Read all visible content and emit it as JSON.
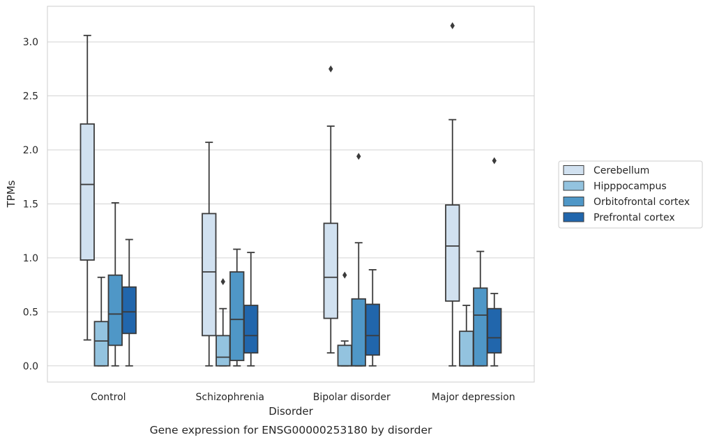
{
  "chart_data": {
    "type": "boxplot",
    "caption": "Gene expression for ENSG00000253180 by disorder",
    "xlabel": "Disorder",
    "ylabel": "TPMs",
    "ylim": [
      -0.15,
      3.33
    ],
    "yticks": [
      "0.0",
      "0.5",
      "1.0",
      "1.5",
      "2.0",
      "2.5",
      "3.0"
    ],
    "grid": "horizontal",
    "legend_position": "right",
    "categories": [
      "Control",
      "Schizophrenia",
      "Bipolar disorder",
      "Major depression"
    ],
    "series": [
      {
        "name": "Cerebellum",
        "color": "#d1e1f0",
        "boxes": [
          {
            "whislo": 0.24,
            "q1": 0.98,
            "med": 1.68,
            "q3": 2.24,
            "whishi": 3.06,
            "fliers": []
          },
          {
            "whislo": 0.0,
            "q1": 0.28,
            "med": 0.87,
            "q3": 1.41,
            "whishi": 2.07,
            "fliers": []
          },
          {
            "whislo": 0.12,
            "q1": 0.44,
            "med": 0.82,
            "q3": 1.32,
            "whishi": 2.22,
            "fliers": [
              2.75
            ]
          },
          {
            "whislo": 0.0,
            "q1": 0.6,
            "med": 1.11,
            "q3": 1.49,
            "whishi": 2.28,
            "fliers": [
              3.15
            ]
          }
        ]
      },
      {
        "name": "Hipppocampus",
        "color": "#93c3df",
        "boxes": [
          {
            "whislo": 0.0,
            "q1": 0.0,
            "med": 0.23,
            "q3": 0.41,
            "whishi": 0.82,
            "fliers": []
          },
          {
            "whislo": 0.0,
            "q1": 0.0,
            "med": 0.08,
            "q3": 0.28,
            "whishi": 0.53,
            "fliers": [
              0.78
            ]
          },
          {
            "whislo": 0.0,
            "q1": 0.0,
            "med": 0.0,
            "q3": 0.19,
            "whishi": 0.23,
            "fliers": [
              0.84
            ]
          },
          {
            "whislo": 0.0,
            "q1": 0.0,
            "med": 0.0,
            "q3": 0.32,
            "whishi": 0.56,
            "fliers": []
          }
        ]
      },
      {
        "name": "Orbitofrontal cortex",
        "color": "#4f97c7",
        "boxes": [
          {
            "whislo": 0.0,
            "q1": 0.19,
            "med": 0.48,
            "q3": 0.84,
            "whishi": 1.51,
            "fliers": []
          },
          {
            "whislo": 0.0,
            "q1": 0.05,
            "med": 0.43,
            "q3": 0.87,
            "whishi": 1.08,
            "fliers": []
          },
          {
            "whislo": 0.0,
            "q1": 0.0,
            "med": 0.0,
            "q3": 0.62,
            "whishi": 1.14,
            "fliers": [
              1.94
            ]
          },
          {
            "whislo": 0.0,
            "q1": 0.0,
            "med": 0.47,
            "q3": 0.72,
            "whishi": 1.06,
            "fliers": []
          }
        ]
      },
      {
        "name": "Prefrontal cortex",
        "color": "#2166ac",
        "boxes": [
          {
            "whislo": 0.0,
            "q1": 0.3,
            "med": 0.5,
            "q3": 0.73,
            "whishi": 1.17,
            "fliers": []
          },
          {
            "whislo": 0.0,
            "q1": 0.12,
            "med": 0.28,
            "q3": 0.56,
            "whishi": 1.05,
            "fliers": []
          },
          {
            "whislo": 0.0,
            "q1": 0.1,
            "med": 0.28,
            "q3": 0.57,
            "whishi": 0.89,
            "fliers": []
          },
          {
            "whislo": 0.0,
            "q1": 0.12,
            "med": 0.26,
            "q3": 0.53,
            "whishi": 0.67,
            "fliers": [
              1.9
            ]
          }
        ]
      }
    ]
  },
  "colors": {
    "line": "#3b3b3b",
    "grid": "#d3d3d3",
    "frame": "#cccccc"
  }
}
